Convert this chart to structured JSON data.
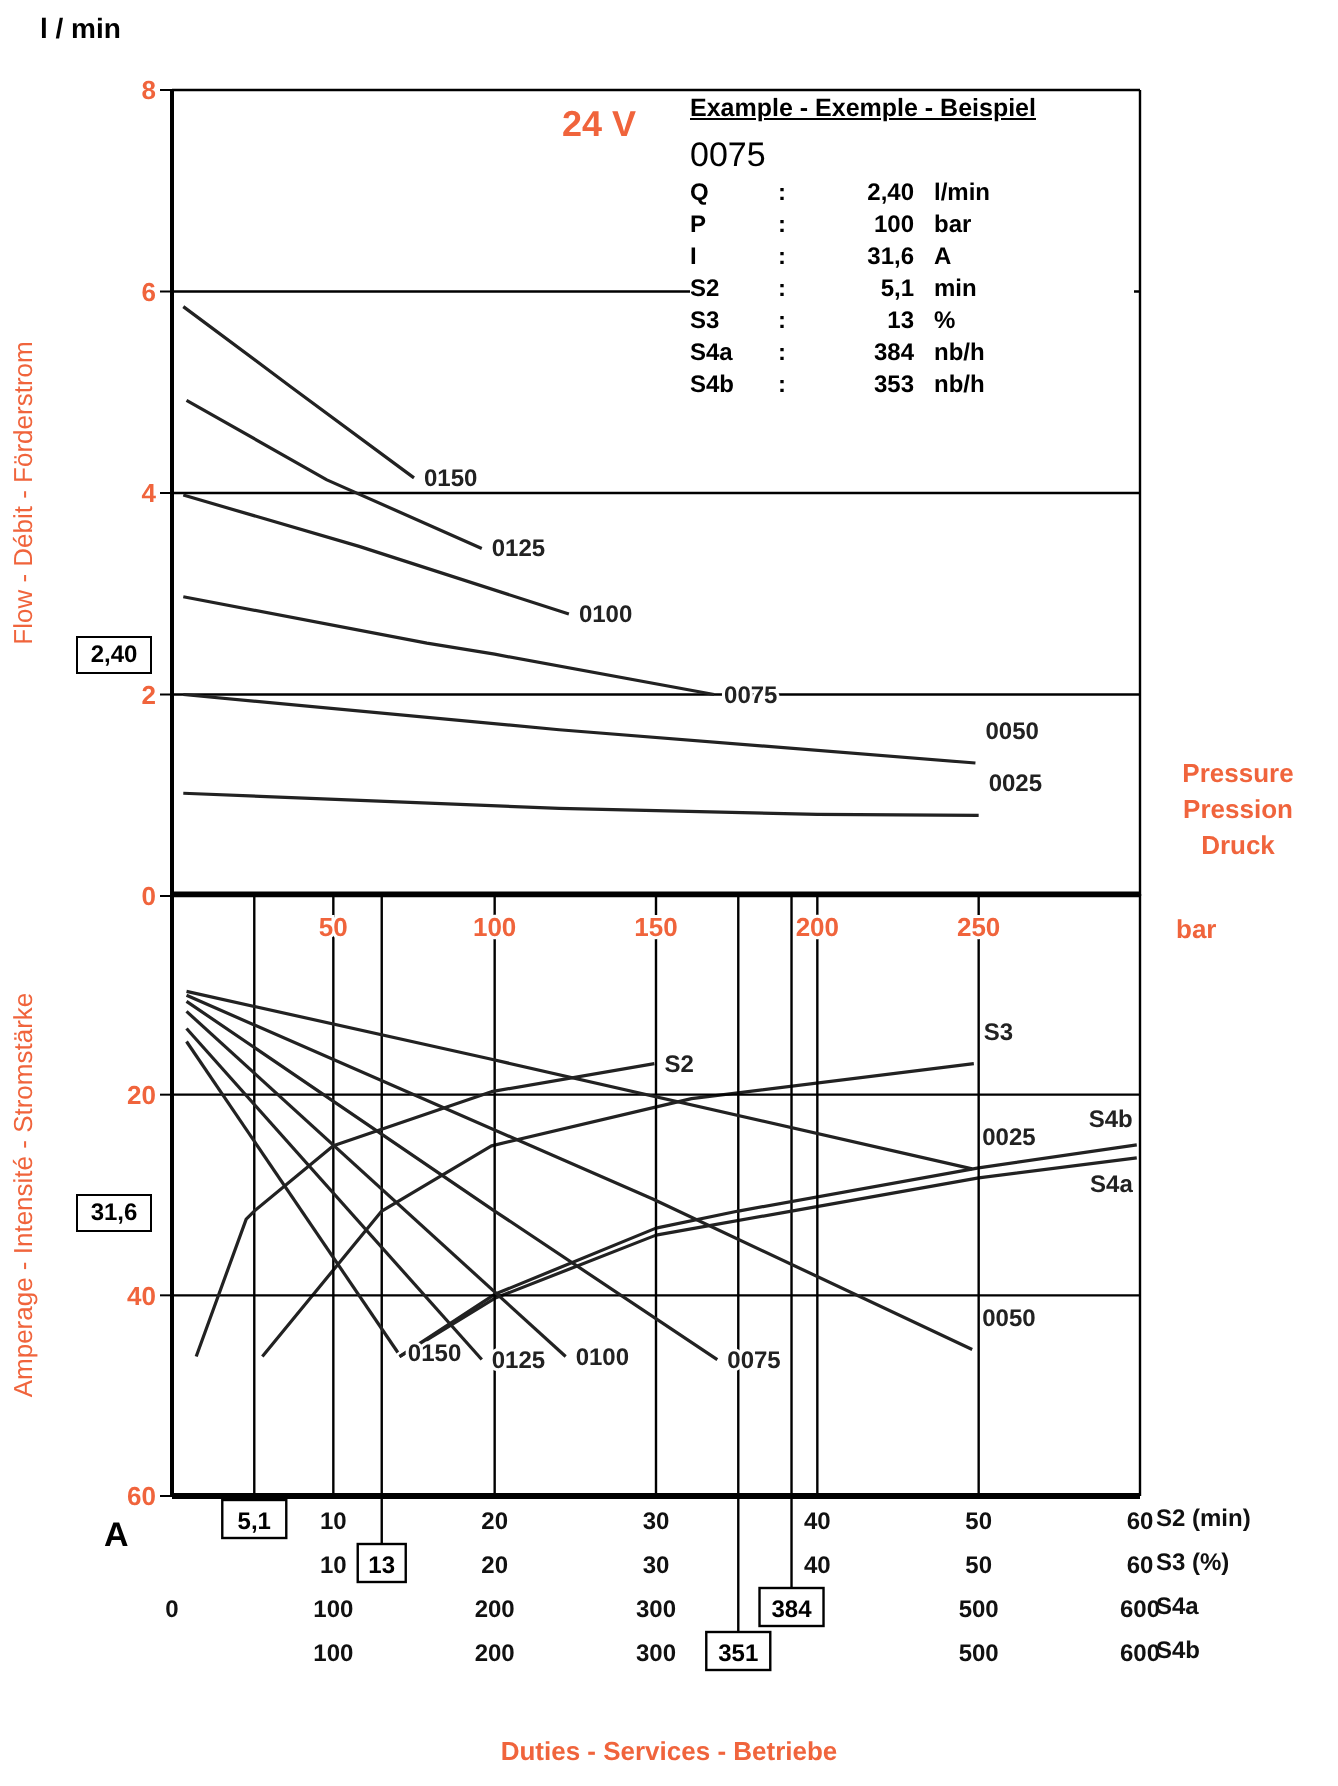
{
  "chart_data": [
    {
      "type": "line",
      "ylabel": "Flow - Débit - Förderstrom",
      "xlabel": "Pressure Pression Druck",
      "xlim": [
        0,
        300
      ],
      "xticks": [
        50,
        100,
        150,
        200,
        250
      ],
      "ylim": [
        0,
        8
      ],
      "yticks": [
        0,
        2,
        4,
        6,
        8
      ],
      "tick_labels": "y",
      "grid": true,
      "marker": "none",
      "line_style": "solid",
      "annotations": [
        "l / min",
        "2,40",
        "24 V",
        "Example - Exemple - Beispiel",
        "0075",
        "Q : 2,40 l/min",
        "P : 100 bar",
        "I : 31,6 A",
        "S2 : 5,1 min",
        "S3 : 13 %",
        "S4a : 384 nb/h",
        "S4b : 353 nb/h"
      ],
      "series": [
        {
          "name": "0150",
          "color": "#222222",
          "x": [
            3.5,
            37,
            75
          ],
          "values": [
            5.85,
            5.05,
            4.15
          ]
        },
        {
          "name": "0125",
          "color": "#222222",
          "x": [
            4.5,
            48,
            96
          ],
          "values": [
            4.92,
            4.13,
            3.45
          ]
        },
        {
          "name": "0100",
          "color": "#222222",
          "x": [
            3.5,
            58,
            123
          ],
          "values": [
            3.98,
            3.47,
            2.8
          ]
        },
        {
          "name": "0075",
          "color": "#222222",
          "x": [
            3.5,
            79,
            100,
            168
          ],
          "values": [
            2.97,
            2.51,
            2.4,
            2.0
          ]
        },
        {
          "name": "0050",
          "color": "#222222",
          "x": [
            3.5,
            120,
            249
          ],
          "values": [
            2.0,
            1.65,
            1.32
          ]
        },
        {
          "name": "0025",
          "color": "#222222",
          "x": [
            3.5,
            120,
            200,
            250
          ],
          "values": [
            1.02,
            0.87,
            0.81,
            0.8
          ]
        }
      ]
    },
    {
      "type": "line",
      "ylabel": "Amperage - Intensité - Stromstärke",
      "xlabel": "bar",
      "xlim": [
        0,
        300
      ],
      "xticks": [
        50,
        100,
        150,
        200,
        250
      ],
      "ylim": [
        60,
        0
      ],
      "yticks": [
        20,
        40,
        60
      ],
      "grid": true,
      "marker": "none",
      "line_style": "solid",
      "x2lim": [
        0,
        60
      ],
      "x2ticks": [
        10,
        20,
        30,
        40,
        50,
        60
      ],
      "x2label": "S2 (min)",
      "annotations": [
        "A",
        "31,6",
        "Duties - Services - Betriebe"
      ],
      "ref_lines": [
        {
          "axis": "x2",
          "value": 5.1,
          "label": "5,1"
        }
      ],
      "series": [
        {
          "name": "0025",
          "color": "#222222",
          "x": [
            4.5,
            98,
            248
          ],
          "values": [
            9.7,
            16.4,
            27.4
          ]
        },
        {
          "name": "0050",
          "color": "#222222",
          "x": [
            4.5,
            149,
            248
          ],
          "values": [
            10.1,
            30.4,
            45.4
          ]
        },
        {
          "name": "0075",
          "color": "#222222",
          "x": [
            4.5,
            100,
            169
          ],
          "values": [
            10.7,
            31.6,
            46.4
          ]
        },
        {
          "name": "0100",
          "color": "#222222",
          "x": [
            4.5,
            122
          ],
          "values": [
            11.7,
            46.1
          ]
        },
        {
          "name": "0125",
          "color": "#222222",
          "x": [
            4.5,
            96
          ],
          "values": [
            13.4,
            46.4
          ]
        },
        {
          "name": "0150",
          "color": "#222222",
          "x": [
            4.5,
            70
          ],
          "values": [
            14.7,
            45.7
          ]
        },
        {
          "name": "S2",
          "color": "#222222",
          "axis": "x2",
          "x": [
            1.5,
            4.6,
            5.1,
            10,
            19.8,
            29.9
          ],
          "values": [
            46.1,
            32.4,
            31.6,
            25.1,
            19.7,
            16.9
          ]
        }
      ]
    },
    {
      "type": "line",
      "xlabel": "S3 (%)",
      "xlim": [
        0,
        60
      ],
      "xticks": [
        10,
        20,
        30,
        40,
        50,
        60
      ],
      "ylim": [
        60,
        0
      ],
      "tick_labels": "x",
      "marker": "none",
      "ref_lines": [
        {
          "axis": "x",
          "value": 13,
          "label": "13"
        }
      ],
      "series": [
        {
          "name": "S3",
          "color": "#222222",
          "x": [
            5.6,
            13,
            19.8,
            32.2,
            49.7
          ],
          "values": [
            46.1,
            31.6,
            25.1,
            20.4,
            16.9
          ]
        }
      ]
    },
    {
      "type": "line",
      "xlabel": "S4a",
      "xlim": [
        0,
        600
      ],
      "xticks": [
        0,
        100,
        200,
        300,
        500,
        600
      ],
      "ylim": [
        60,
        0
      ],
      "tick_labels": "x",
      "marker": "none",
      "ref_lines": [
        {
          "axis": "x",
          "value": 384,
          "label": "384"
        }
      ],
      "series": [
        {
          "name": "S4a",
          "color": "#222222",
          "x": [
            141,
            200,
            300,
            384,
            500,
            598
          ],
          "values": [
            46.1,
            40.3,
            34.0,
            31.6,
            28.3,
            26.3
          ]
        }
      ]
    },
    {
      "type": "line",
      "xlabel": "S4b",
      "xlim": [
        0,
        600
      ],
      "xticks": [
        100,
        200,
        300,
        500,
        600
      ],
      "ylim": [
        60,
        0
      ],
      "tick_labels": "x",
      "marker": "none",
      "ref_lines": [
        {
          "axis": "x",
          "value": 351,
          "label": "351"
        }
      ],
      "series": [
        {
          "name": "S4b",
          "color": "#222222",
          "x": [
            141,
            200,
            300,
            351,
            500,
            598
          ],
          "values": [
            46.1,
            39.9,
            33.3,
            31.6,
            27.3,
            25.0
          ]
        }
      ]
    }
  ]
}
